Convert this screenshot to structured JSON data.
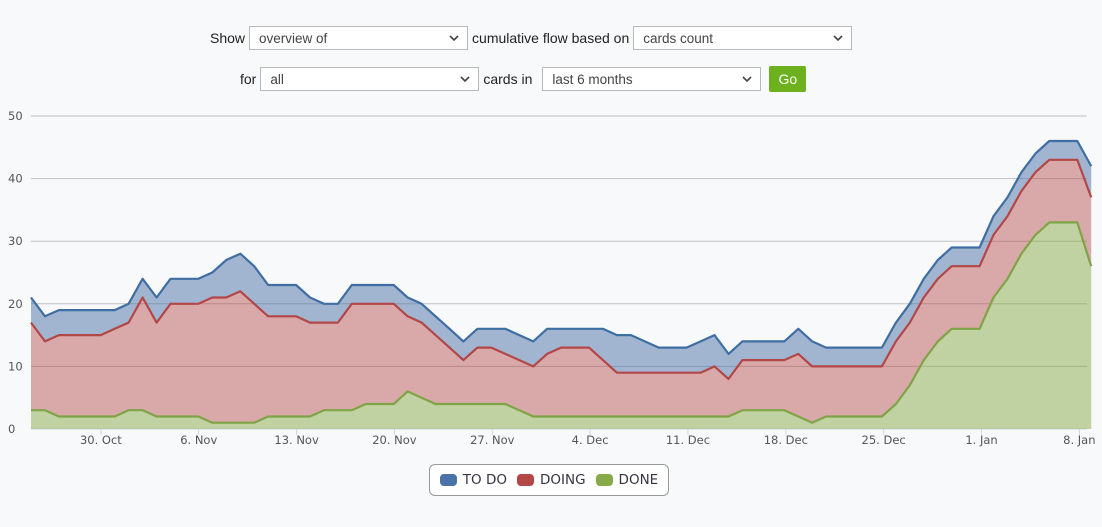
{
  "controls": {
    "show_label": "Show",
    "view_select": "overview of",
    "flow_label": "cumulative flow based on",
    "metric_select": "cards count",
    "for_label": "for",
    "cards_select": "all",
    "cards_in_label": "cards  in",
    "period_select": "last 6 months",
    "go_label": "Go",
    "go_color": "#6db11f"
  },
  "legend": [
    {
      "label": "TO DO",
      "color": "#4a72a8"
    },
    {
      "label": "DOING",
      "color": "#b34646"
    },
    {
      "label": "DONE",
      "color": "#87a94a"
    }
  ],
  "chart_data": {
    "type": "area",
    "stacked": true,
    "title": "",
    "xlabel": "",
    "ylabel": "",
    "ylim": [
      0,
      50
    ],
    "yticks": [
      0,
      10,
      20,
      30,
      40,
      50
    ],
    "grid": true,
    "legend_position": "bottom",
    "x_start": "25. Oct",
    "x_step_days": 1,
    "xtick_labels": [
      "30. Oct",
      "6. Nov",
      "13. Nov",
      "20. Nov",
      "27. Nov",
      "4. Dec",
      "11. Dec",
      "18. Dec",
      "25. Dec",
      "1. Jan",
      "8. Jan"
    ],
    "xtick_index": [
      5,
      12,
      19,
      26,
      33,
      40,
      47,
      54,
      61,
      68,
      75
    ],
    "series_stacked_totals": {
      "TO DO": [
        21,
        18,
        19,
        19,
        19,
        19,
        19,
        20,
        24,
        21,
        24,
        24,
        24,
        25,
        27,
        28,
        26,
        23,
        23,
        23,
        21,
        20,
        20,
        23,
        23,
        23,
        23,
        21,
        20,
        18,
        16,
        14,
        16,
        16,
        16,
        15,
        14,
        16,
        16,
        16,
        16,
        16,
        15,
        15,
        14,
        13,
        13,
        13,
        14,
        15,
        12,
        14,
        14,
        14,
        14,
        16,
        14,
        13,
        13,
        13,
        13,
        13,
        17,
        20,
        24,
        27,
        29,
        29,
        29,
        34,
        37,
        41,
        44,
        46,
        46,
        46,
        42
      ],
      "DOING": [
        17,
        14,
        15,
        15,
        15,
        15,
        16,
        17,
        21,
        17,
        20,
        20,
        20,
        21,
        21,
        22,
        20,
        18,
        18,
        18,
        17,
        17,
        17,
        20,
        20,
        20,
        20,
        18,
        17,
        15,
        13,
        11,
        13,
        13,
        12,
        11,
        10,
        12,
        13,
        13,
        13,
        11,
        9,
        9,
        9,
        9,
        9,
        9,
        9,
        10,
        8,
        11,
        11,
        11,
        11,
        12,
        10,
        10,
        10,
        10,
        10,
        10,
        14,
        17,
        21,
        24,
        26,
        26,
        26,
        31,
        34,
        38,
        41,
        43,
        43,
        43,
        37
      ],
      "DONE": [
        3,
        3,
        2,
        2,
        2,
        2,
        2,
        3,
        3,
        2,
        2,
        2,
        2,
        1,
        1,
        1,
        1,
        2,
        2,
        2,
        2,
        3,
        3,
        3,
        4,
        4,
        4,
        6,
        5,
        4,
        4,
        4,
        4,
        4,
        4,
        3,
        2,
        2,
        2,
        2,
        2,
        2,
        2,
        2,
        2,
        2,
        2,
        2,
        2,
        2,
        2,
        3,
        3,
        3,
        3,
        2,
        1,
        2,
        2,
        2,
        2,
        2,
        4,
        7,
        11,
        14,
        16,
        16,
        16,
        21,
        24,
        28,
        31,
        33,
        33,
        33,
        26
      ]
    }
  }
}
